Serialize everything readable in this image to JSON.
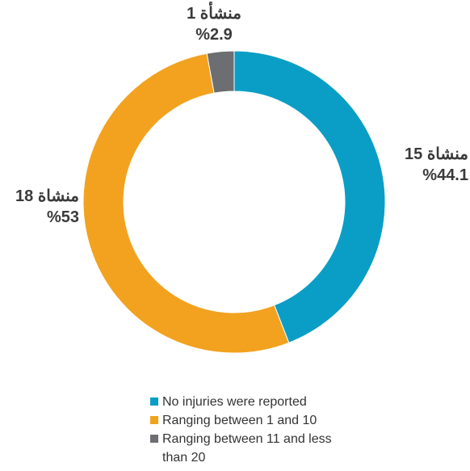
{
  "chart_data": {
    "type": "pie",
    "variant": "donut",
    "slices": [
      {
        "legend": "No injuries were reported",
        "count_label": "15 منشاة",
        "percent_label": "%44.1",
        "value": 44.1,
        "color": "#0a9ec6"
      },
      {
        "legend": "Ranging between 1 and 10",
        "count_label": "18 منشاة",
        "percent_label": "%53",
        "value": 53,
        "color": "#f2a21f"
      },
      {
        "legend": "Ranging between 11 and less than 20",
        "count_label": "1 منشأة",
        "percent_label": "%2.9",
        "value": 2.9,
        "color": "#6d6e71"
      }
    ],
    "legend_position": "bottom"
  }
}
